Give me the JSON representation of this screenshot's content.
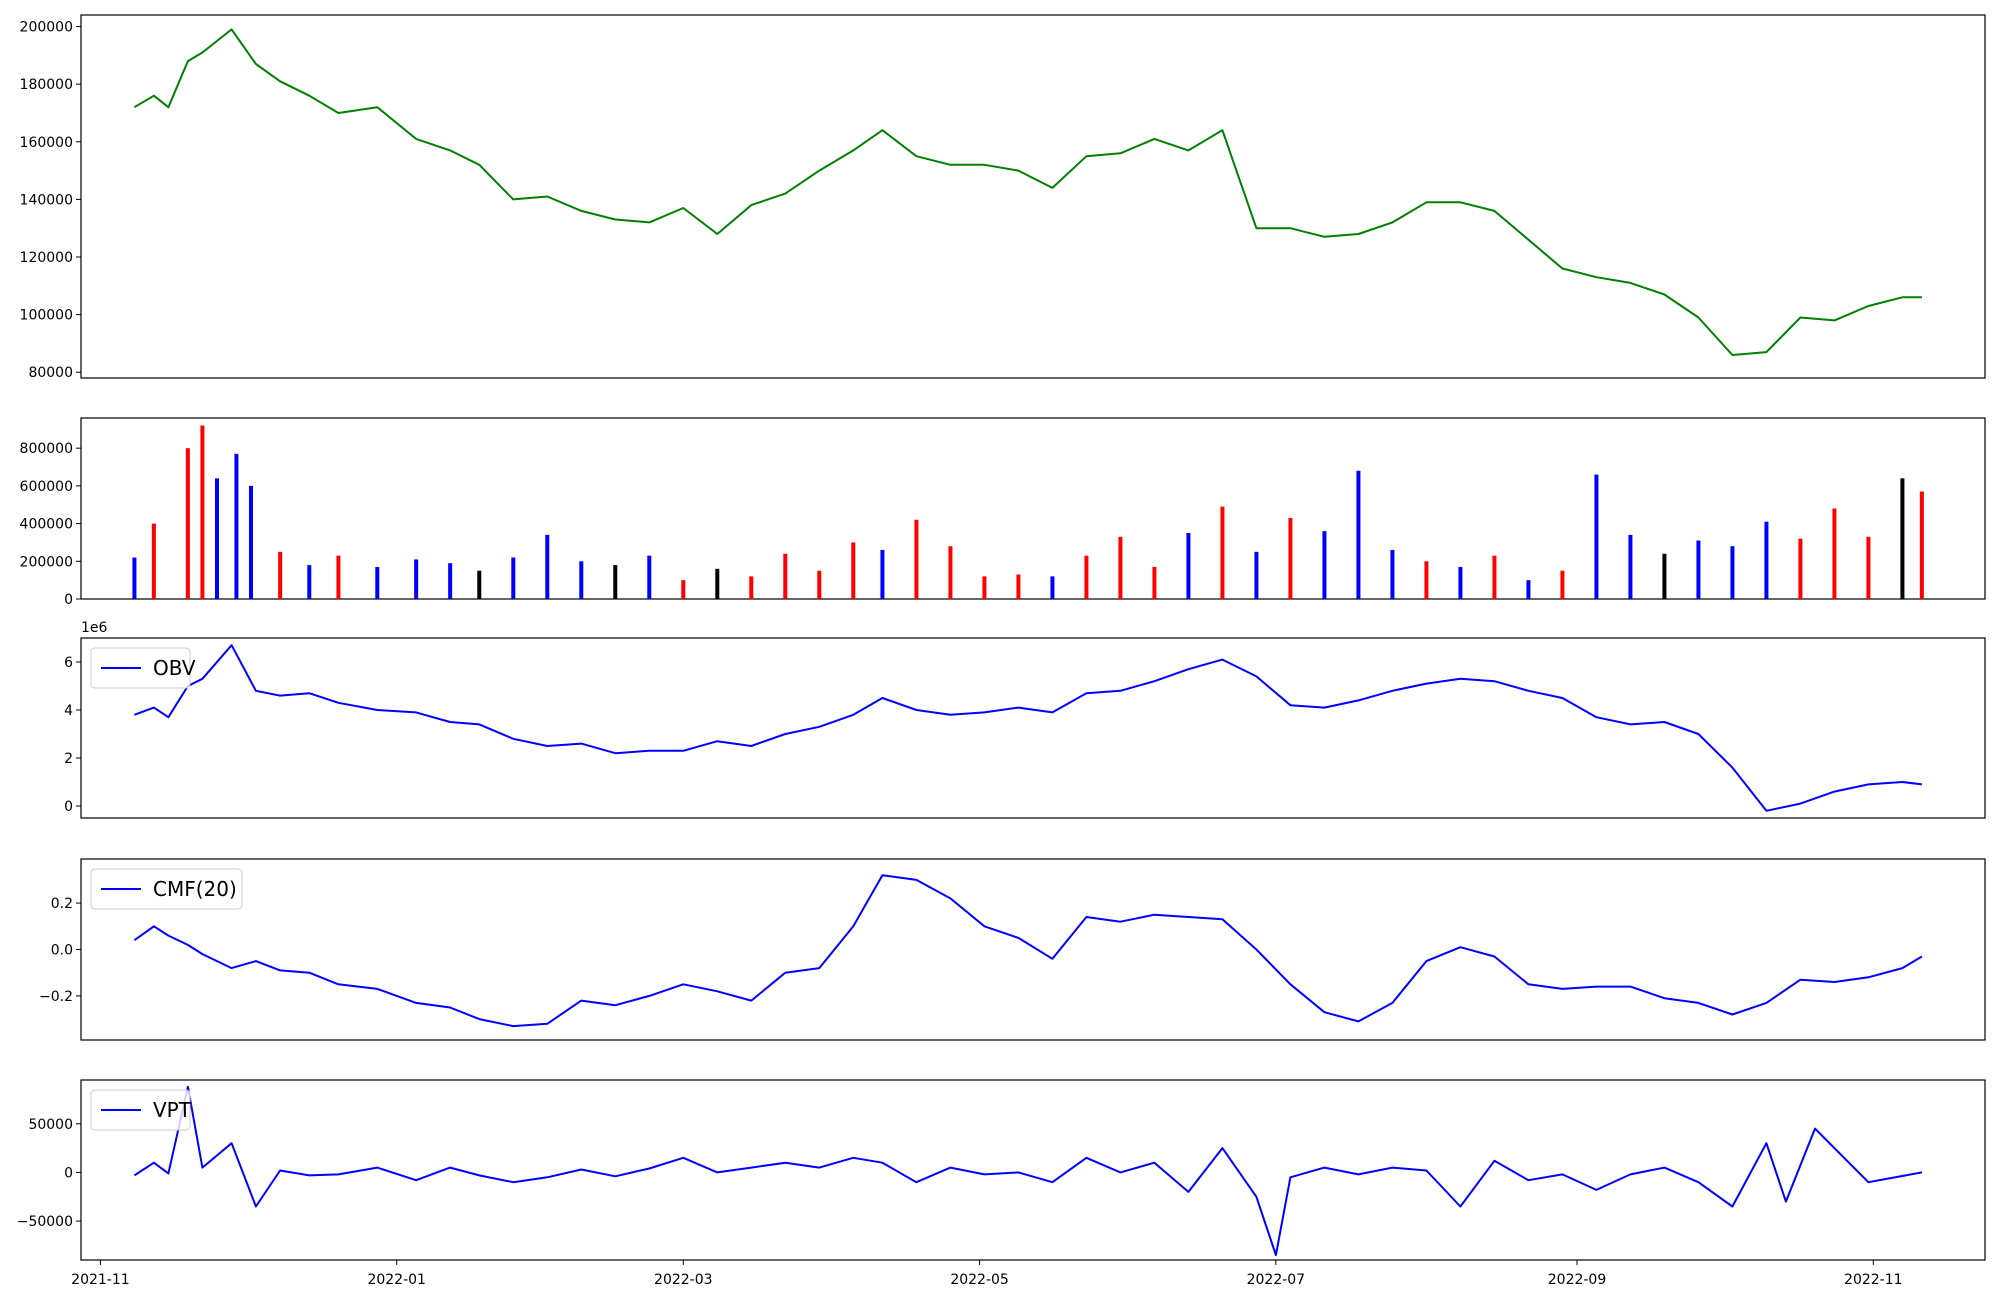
{
  "colors": {
    "price_line": "#008000",
    "up_volume": "#0000ff",
    "down_volume": "#ff0000",
    "flat_volume": "#000000",
    "indicator_line": "#0000ff",
    "axes": "#000000"
  },
  "x_axis": {
    "min": "2021-10-28",
    "max": "2022-11-24",
    "ticks": [
      "2021-11",
      "2022-01",
      "2022-03",
      "2022-05",
      "2022-07",
      "2022-09",
      "2022-11"
    ]
  },
  "chart_data": [
    {
      "type": "line",
      "name": "price",
      "ylim": [
        78000,
        204000
      ],
      "yticks": [
        80000,
        100000,
        120000,
        140000,
        160000,
        180000,
        200000
      ],
      "grid": false,
      "legend": null,
      "x": [
        "2021-11-08",
        "2021-11-12",
        "2021-11-15",
        "2021-11-19",
        "2021-11-22",
        "2021-11-28",
        "2021-12-03",
        "2021-12-08",
        "2021-12-14",
        "2021-12-20",
        "2021-12-28",
        "2022-01-05",
        "2022-01-12",
        "2022-01-18",
        "2022-01-25",
        "2022-02-01",
        "2022-02-08",
        "2022-02-15",
        "2022-02-22",
        "2022-03-01",
        "2022-03-08",
        "2022-03-15",
        "2022-03-22",
        "2022-03-29",
        "2022-04-05",
        "2022-04-11",
        "2022-04-18",
        "2022-04-25",
        "2022-05-02",
        "2022-05-09",
        "2022-05-16",
        "2022-05-23",
        "2022-05-30",
        "2022-06-06",
        "2022-06-13",
        "2022-06-20",
        "2022-06-27",
        "2022-07-04",
        "2022-07-11",
        "2022-07-18",
        "2022-07-25",
        "2022-08-01",
        "2022-08-08",
        "2022-08-15",
        "2022-08-22",
        "2022-08-29",
        "2022-09-05",
        "2022-09-12",
        "2022-09-19",
        "2022-09-26",
        "2022-10-03",
        "2022-10-10",
        "2022-10-17",
        "2022-10-24",
        "2022-10-31",
        "2022-11-07",
        "2022-11-11"
      ],
      "values": [
        172000,
        176000,
        172000,
        188000,
        191000,
        199000,
        187000,
        181000,
        176000,
        170000,
        172000,
        161000,
        157000,
        152000,
        140000,
        141000,
        136000,
        133000,
        132000,
        137000,
        128000,
        138000,
        142000,
        150000,
        157000,
        164000,
        155000,
        152000,
        152000,
        150000,
        144000,
        155000,
        156000,
        161000,
        157000,
        164000,
        130000,
        130000,
        127000,
        128000,
        132000,
        139000,
        139000,
        136000,
        126000,
        116000,
        113000,
        111000,
        107000,
        99000,
        86000,
        87000,
        99000,
        98000,
        103000,
        106000,
        106000
      ]
    },
    {
      "type": "bar",
      "name": "volume",
      "ylim": [
        0,
        960000
      ],
      "yticks": [
        0,
        200000,
        400000,
        600000,
        800000
      ],
      "grid": false,
      "legend": null,
      "x": [
        "2021-11-08",
        "2021-11-12",
        "2021-11-19",
        "2021-11-22",
        "2021-11-25",
        "2021-11-29",
        "2021-12-02",
        "2021-12-08",
        "2021-12-14",
        "2021-12-20",
        "2021-12-28",
        "2022-01-05",
        "2022-01-12",
        "2022-01-18",
        "2022-01-25",
        "2022-02-01",
        "2022-02-08",
        "2022-02-15",
        "2022-02-22",
        "2022-03-01",
        "2022-03-08",
        "2022-03-15",
        "2022-03-22",
        "2022-03-29",
        "2022-04-05",
        "2022-04-11",
        "2022-04-18",
        "2022-04-25",
        "2022-05-02",
        "2022-05-09",
        "2022-05-16",
        "2022-05-23",
        "2022-05-30",
        "2022-06-06",
        "2022-06-13",
        "2022-06-20",
        "2022-06-27",
        "2022-07-04",
        "2022-07-11",
        "2022-07-18",
        "2022-07-25",
        "2022-08-01",
        "2022-08-08",
        "2022-08-15",
        "2022-08-22",
        "2022-08-29",
        "2022-09-05",
        "2022-09-12",
        "2022-09-19",
        "2022-09-26",
        "2022-10-03",
        "2022-10-10",
        "2022-10-17",
        "2022-10-24",
        "2022-10-31",
        "2022-11-07",
        "2022-11-11"
      ],
      "values": [
        220000,
        400000,
        800000,
        920000,
        640000,
        770000,
        600000,
        250000,
        180000,
        230000,
        170000,
        210000,
        190000,
        150000,
        220000,
        340000,
        200000,
        180000,
        230000,
        100000,
        160000,
        120000,
        240000,
        150000,
        300000,
        260000,
        420000,
        280000,
        120000,
        130000,
        120000,
        230000,
        330000,
        170000,
        350000,
        490000,
        250000,
        430000,
        360000,
        680000,
        260000,
        200000,
        170000,
        230000,
        100000,
        150000,
        660000,
        340000,
        240000,
        310000,
        280000,
        410000,
        320000,
        480000,
        330000,
        640000,
        570000
      ],
      "direction": [
        "up",
        "down",
        "down",
        "down",
        "up",
        "up",
        "up",
        "down",
        "up",
        "down",
        "up",
        "up",
        "up",
        "flat",
        "up",
        "up",
        "up",
        "flat",
        "up",
        "down",
        "flat",
        "down",
        "down",
        "down",
        "down",
        "up",
        "down",
        "down",
        "down",
        "down",
        "up",
        "down",
        "down",
        "down",
        "up",
        "down",
        "up",
        "down",
        "up",
        "up",
        "up",
        "down",
        "up",
        "down",
        "up",
        "down",
        "up",
        "up",
        "flat",
        "up",
        "up",
        "up",
        "down",
        "down",
        "down",
        "flat",
        "down"
      ]
    },
    {
      "type": "line",
      "name": "obv",
      "ylim": [
        -500000,
        7000000
      ],
      "yticks": [
        0,
        2,
        4,
        6
      ],
      "scale_label": "1e6",
      "grid": false,
      "legend": "upper left",
      "series": [
        {
          "name": "OBV"
        }
      ],
      "x": [
        "2021-11-08",
        "2021-11-12",
        "2021-11-15",
        "2021-11-19",
        "2021-11-22",
        "2021-11-28",
        "2021-12-03",
        "2021-12-08",
        "2021-12-14",
        "2021-12-20",
        "2021-12-28",
        "2022-01-05",
        "2022-01-12",
        "2022-01-18",
        "2022-01-25",
        "2022-02-01",
        "2022-02-08",
        "2022-02-15",
        "2022-02-22",
        "2022-03-01",
        "2022-03-08",
        "2022-03-15",
        "2022-03-22",
        "2022-03-29",
        "2022-04-05",
        "2022-04-11",
        "2022-04-18",
        "2022-04-25",
        "2022-05-02",
        "2022-05-09",
        "2022-05-16",
        "2022-05-23",
        "2022-05-30",
        "2022-06-06",
        "2022-06-13",
        "2022-06-20",
        "2022-06-27",
        "2022-07-04",
        "2022-07-11",
        "2022-07-18",
        "2022-07-25",
        "2022-08-01",
        "2022-08-08",
        "2022-08-15",
        "2022-08-22",
        "2022-08-29",
        "2022-09-05",
        "2022-09-12",
        "2022-09-19",
        "2022-09-26",
        "2022-10-03",
        "2022-10-10",
        "2022-10-17",
        "2022-10-24",
        "2022-10-31",
        "2022-11-07",
        "2022-11-11"
      ],
      "values": [
        3800000,
        4100000,
        3700000,
        5000000,
        5300000,
        6700000,
        4800000,
        4600000,
        4700000,
        4300000,
        4000000,
        3900000,
        3500000,
        3400000,
        2800000,
        2500000,
        2600000,
        2200000,
        2300000,
        2300000,
        2700000,
        2500000,
        3000000,
        3300000,
        3800000,
        4500000,
        4000000,
        3800000,
        3900000,
        4100000,
        3900000,
        4700000,
        4800000,
        5200000,
        5700000,
        6100000,
        5400000,
        4200000,
        4100000,
        4400000,
        4800000,
        5100000,
        5300000,
        5200000,
        4800000,
        4500000,
        3700000,
        3400000,
        3500000,
        3000000,
        1600000,
        -200000,
        100000,
        600000,
        900000,
        1000000,
        900000
      ]
    },
    {
      "type": "line",
      "name": "cmf",
      "ylim": [
        -0.39,
        0.39
      ],
      "yticks": [
        -0.2,
        0.0,
        0.2
      ],
      "grid": false,
      "legend": "upper left",
      "series": [
        {
          "name": "CMF(20)"
        }
      ],
      "x": [
        "2021-11-08",
        "2021-11-12",
        "2021-11-15",
        "2021-11-19",
        "2021-11-22",
        "2021-11-28",
        "2021-12-03",
        "2021-12-08",
        "2021-12-14",
        "2021-12-20",
        "2021-12-28",
        "2022-01-05",
        "2022-01-12",
        "2022-01-18",
        "2022-01-25",
        "2022-02-01",
        "2022-02-08",
        "2022-02-15",
        "2022-02-22",
        "2022-03-01",
        "2022-03-08",
        "2022-03-15",
        "2022-03-22",
        "2022-03-29",
        "2022-04-05",
        "2022-04-11",
        "2022-04-18",
        "2022-04-25",
        "2022-05-02",
        "2022-05-09",
        "2022-05-16",
        "2022-05-23",
        "2022-05-30",
        "2022-06-06",
        "2022-06-13",
        "2022-06-20",
        "2022-06-27",
        "2022-07-04",
        "2022-07-11",
        "2022-07-18",
        "2022-07-25",
        "2022-08-01",
        "2022-08-08",
        "2022-08-15",
        "2022-08-22",
        "2022-08-29",
        "2022-09-05",
        "2022-09-12",
        "2022-09-19",
        "2022-09-26",
        "2022-10-03",
        "2022-10-10",
        "2022-10-17",
        "2022-10-24",
        "2022-10-31",
        "2022-11-07",
        "2022-11-11"
      ],
      "values": [
        0.04,
        0.1,
        0.06,
        0.02,
        -0.02,
        -0.08,
        -0.05,
        -0.09,
        -0.1,
        -0.15,
        -0.17,
        -0.23,
        -0.25,
        -0.3,
        -0.33,
        -0.32,
        -0.22,
        -0.24,
        -0.2,
        -0.15,
        -0.18,
        -0.22,
        -0.1,
        -0.08,
        0.1,
        0.32,
        0.3,
        0.22,
        0.1,
        0.05,
        -0.04,
        0.14,
        0.12,
        0.15,
        0.14,
        0.13,
        0.0,
        -0.15,
        -0.27,
        -0.31,
        -0.23,
        -0.05,
        0.01,
        -0.03,
        -0.15,
        -0.17,
        -0.16,
        -0.16,
        -0.21,
        -0.23,
        -0.28,
        -0.23,
        -0.13,
        -0.14,
        -0.12,
        -0.08,
        -0.03
      ]
    },
    {
      "type": "line",
      "name": "vpt",
      "ylim": [
        -90000,
        95000
      ],
      "yticks": [
        -50000,
        0,
        50000
      ],
      "grid": false,
      "legend": "upper left",
      "series": [
        {
          "name": "VPT"
        }
      ],
      "x": [
        "2021-11-08",
        "2021-11-12",
        "2021-11-15",
        "2021-11-19",
        "2021-11-22",
        "2021-11-28",
        "2021-12-03",
        "2021-12-08",
        "2021-12-14",
        "2021-12-20",
        "2021-12-28",
        "2022-01-05",
        "2022-01-12",
        "2022-01-18",
        "2022-01-25",
        "2022-02-01",
        "2022-02-08",
        "2022-02-15",
        "2022-02-22",
        "2022-03-01",
        "2022-03-08",
        "2022-03-15",
        "2022-03-22",
        "2022-03-29",
        "2022-04-05",
        "2022-04-11",
        "2022-04-18",
        "2022-04-25",
        "2022-05-02",
        "2022-05-09",
        "2022-05-16",
        "2022-05-23",
        "2022-05-30",
        "2022-06-06",
        "2022-06-13",
        "2022-06-20",
        "2022-06-27",
        "2022-07-01",
        "2022-07-04",
        "2022-07-11",
        "2022-07-18",
        "2022-07-25",
        "2022-08-01",
        "2022-08-08",
        "2022-08-15",
        "2022-08-22",
        "2022-08-29",
        "2022-09-05",
        "2022-09-12",
        "2022-09-19",
        "2022-09-26",
        "2022-10-03",
        "2022-10-10",
        "2022-10-14",
        "2022-10-20",
        "2022-10-31",
        "2022-11-11"
      ],
      "values": [
        -3000,
        10000,
        -1000,
        88000,
        5000,
        30000,
        -35000,
        2000,
        -3000,
        -2000,
        5000,
        -8000,
        5000,
        -3000,
        -10000,
        -5000,
        3000,
        -4000,
        4000,
        15000,
        0,
        5000,
        10000,
        5000,
        15000,
        10000,
        -10000,
        5000,
        -2000,
        0,
        -10000,
        15000,
        0,
        10000,
        -20000,
        25000,
        -25000,
        -85000,
        -5000,
        5000,
        -2000,
        5000,
        2000,
        -35000,
        12000,
        -8000,
        -2000,
        -18000,
        -2000,
        5000,
        -10000,
        -35000,
        30000,
        -30000,
        45000,
        -10000,
        0
      ]
    }
  ]
}
